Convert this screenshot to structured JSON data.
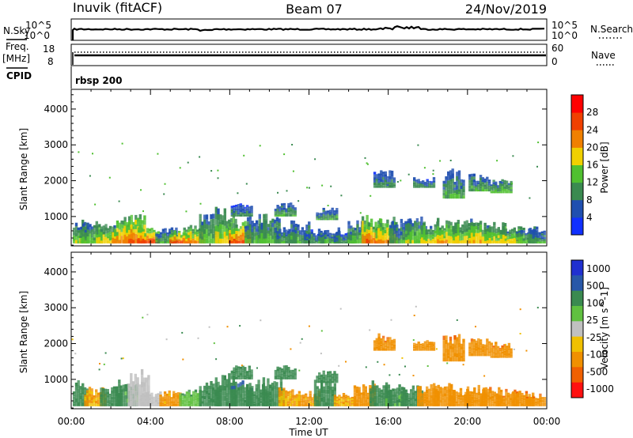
{
  "header": {
    "station": "Inuvik (fitACF)",
    "beam": "Beam 07",
    "date": "24/Nov/2019"
  },
  "summary_panel": {
    "noise_sky_label": "N.Sky",
    "noise_search_label": "N.Search",
    "noise_ticks": [
      "10^5",
      "10^0"
    ],
    "freq_label": "Freq.",
    "freq_unit": "[MHz]",
    "freq_ticks": [
      "18",
      "8"
    ],
    "nave_label": "Nave",
    "nave_ticks": [
      "60",
      "0"
    ],
    "cpid_label": "CPID",
    "cpid_value": "rbsp 200"
  },
  "colors": {
    "power": [
      "#1030ff",
      "#1f4fb0",
      "#3a8a50",
      "#50c030",
      "#f0d000",
      "#f08000",
      "#f04000",
      "#ff0000"
    ],
    "velocity": [
      "#2030d0",
      "#2858a8",
      "#3a8a50",
      "#60c040",
      "#c0c0c0",
      "#f0c000",
      "#f09000",
      "#f06000",
      "#ff1010"
    ]
  },
  "chart_data": [
    {
      "type": "heatmap",
      "title": "",
      "xlabel": "Time UT",
      "ylabel": "Slant Range [km]",
      "x_ticks": [
        "00:00",
        "04:00",
        "08:00",
        "12:00",
        "16:00",
        "20:00",
        "00:00"
      ],
      "y_ticks": [
        "1000",
        "2000",
        "3000",
        "4000"
      ],
      "ylim": [
        180,
        4550
      ],
      "colorbar_label": "Power [dB]",
      "colorbar_ticks": [
        "4",
        "8",
        "12",
        "16",
        "20",
        "24",
        "28"
      ],
      "clim": [
        0,
        30
      ],
      "blobs": [
        {
          "t": 0.3,
          "r0": 250,
          "r1": 1050,
          "p": 16
        },
        {
          "t": 1.0,
          "r0": 250,
          "r1": 900,
          "p": 14
        },
        {
          "t": 1.8,
          "r0": 250,
          "r1": 800,
          "p": 18
        },
        {
          "t": 2.6,
          "r0": 250,
          "r1": 950,
          "p": 22
        },
        {
          "t": 3.2,
          "r0": 250,
          "r1": 1100,
          "p": 24
        },
        {
          "t": 3.9,
          "r0": 250,
          "r1": 750,
          "p": 26
        },
        {
          "t": 4.8,
          "r0": 250,
          "r1": 700,
          "p": 12
        },
        {
          "t": 5.5,
          "r0": 250,
          "r1": 650,
          "p": 26
        },
        {
          "t": 6.2,
          "r0": 250,
          "r1": 800,
          "p": 22
        },
        {
          "t": 7.0,
          "r0": 250,
          "r1": 1100,
          "p": 14
        },
        {
          "t": 7.8,
          "r0": 250,
          "r1": 1300,
          "p": 18
        },
        {
          "t": 8.5,
          "r0": 250,
          "r1": 900,
          "p": 26
        },
        {
          "t": 9.3,
          "r0": 250,
          "r1": 1050,
          "p": 12
        },
        {
          "t": 10.0,
          "r0": 250,
          "r1": 1150,
          "p": 14
        },
        {
          "t": 10.8,
          "r0": 250,
          "r1": 700,
          "p": 12
        },
        {
          "t": 11.5,
          "r0": 250,
          "r1": 900,
          "p": 12
        },
        {
          "t": 12.3,
          "r0": 250,
          "r1": 650,
          "p": 10
        },
        {
          "t": 13.0,
          "r0": 250,
          "r1": 700,
          "p": 12
        },
        {
          "t": 13.8,
          "r0": 250,
          "r1": 600,
          "p": 10
        },
        {
          "t": 14.5,
          "r0": 250,
          "r1": 900,
          "p": 14
        },
        {
          "t": 15.2,
          "r0": 250,
          "r1": 1050,
          "p": 24
        },
        {
          "t": 15.9,
          "r0": 250,
          "r1": 1000,
          "p": 22
        },
        {
          "t": 16.6,
          "r0": 250,
          "r1": 950,
          "p": 12
        },
        {
          "t": 17.4,
          "r0": 250,
          "r1": 1000,
          "p": 16
        },
        {
          "t": 18.2,
          "r0": 250,
          "r1": 900,
          "p": 18
        },
        {
          "t": 19.0,
          "r0": 250,
          "r1": 1000,
          "p": 20
        },
        {
          "t": 19.8,
          "r0": 250,
          "r1": 1050,
          "p": 18
        },
        {
          "t": 20.6,
          "r0": 250,
          "r1": 900,
          "p": 20
        },
        {
          "t": 21.4,
          "r0": 250,
          "r1": 850,
          "p": 18
        },
        {
          "t": 22.2,
          "r0": 250,
          "r1": 800,
          "p": 18
        },
        {
          "t": 23.0,
          "r0": 250,
          "r1": 750,
          "p": 14
        },
        {
          "t": 23.6,
          "r0": 250,
          "r1": 700,
          "p": 12
        },
        {
          "t": 15.8,
          "r0": 1800,
          "r1": 2300,
          "p": 10
        },
        {
          "t": 17.8,
          "r0": 1800,
          "r1": 2100,
          "p": 10
        },
        {
          "t": 19.3,
          "r0": 1500,
          "r1": 2350,
          "p": 12
        },
        {
          "t": 20.6,
          "r0": 1700,
          "r1": 2200,
          "p": 12
        },
        {
          "t": 21.7,
          "r0": 1650,
          "r1": 2050,
          "p": 14
        },
        {
          "t": 8.6,
          "r0": 1000,
          "r1": 1400,
          "p": 10
        },
        {
          "t": 10.8,
          "r0": 1000,
          "r1": 1400,
          "p": 12
        },
        {
          "t": 12.9,
          "r0": 900,
          "r1": 1250,
          "p": 12
        }
      ]
    },
    {
      "type": "heatmap",
      "title": "",
      "xlabel": "Time UT",
      "ylabel": "Slant Range [km]",
      "x_ticks": [
        "00:00",
        "04:00",
        "08:00",
        "12:00",
        "16:00",
        "20:00",
        "00:00"
      ],
      "y_ticks": [
        "1000",
        "2000",
        "3000",
        "4000"
      ],
      "ylim": [
        180,
        4550
      ],
      "colorbar_label": "Velocity [m s^-1]",
      "colorbar_ticks": [
        "1000",
        "500",
        "100",
        "25",
        "-25",
        "-100",
        "-500",
        "-1000"
      ],
      "clim": [
        -1200,
        1200
      ],
      "blobs": [
        {
          "t": 0.3,
          "r0": 250,
          "r1": 1000,
          "v": 150
        },
        {
          "t": 1.2,
          "r0": 250,
          "r1": 800,
          "v": -60
        },
        {
          "t": 2.0,
          "r0": 250,
          "r1": 850,
          "v": 120
        },
        {
          "t": 2.8,
          "r0": 250,
          "r1": 1000,
          "v": 80
        },
        {
          "t": 3.4,
          "r0": 250,
          "r1": 1300,
          "v": 0
        },
        {
          "t": 4.0,
          "r0": 250,
          "r1": 700,
          "v": 10
        },
        {
          "t": 5.0,
          "r0": 250,
          "r1": 700,
          "v": -80
        },
        {
          "t": 6.0,
          "r0": 250,
          "r1": 750,
          "v": 40
        },
        {
          "t": 7.0,
          "r0": 250,
          "r1": 1000,
          "v": 150
        },
        {
          "t": 7.8,
          "r0": 250,
          "r1": 1300,
          "v": 130
        },
        {
          "t": 8.6,
          "r0": 250,
          "r1": 1000,
          "v": 200
        },
        {
          "t": 9.4,
          "r0": 250,
          "r1": 1000,
          "v": 90
        },
        {
          "t": 10.2,
          "r0": 250,
          "r1": 1100,
          "v": 120
        },
        {
          "t": 11.0,
          "r0": 250,
          "r1": 800,
          "v": -60
        },
        {
          "t": 12.0,
          "r0": 250,
          "r1": 700,
          "v": -80
        },
        {
          "t": 12.8,
          "r0": 250,
          "r1": 1000,
          "v": 130
        },
        {
          "t": 13.8,
          "r0": 250,
          "r1": 650,
          "v": -60
        },
        {
          "t": 14.8,
          "r0": 250,
          "r1": 900,
          "v": -90
        },
        {
          "t": 15.6,
          "r0": 250,
          "r1": 1000,
          "v": 100
        },
        {
          "t": 16.4,
          "r0": 250,
          "r1": 950,
          "v": 80
        },
        {
          "t": 17.2,
          "r0": 250,
          "r1": 850,
          "v": 130
        },
        {
          "t": 18.0,
          "r0": 250,
          "r1": 900,
          "v": -120
        },
        {
          "t": 18.8,
          "r0": 250,
          "r1": 950,
          "v": -130
        },
        {
          "t": 19.6,
          "r0": 250,
          "r1": 800,
          "v": -150
        },
        {
          "t": 20.4,
          "r0": 250,
          "r1": 850,
          "v": -150
        },
        {
          "t": 21.2,
          "r0": 250,
          "r1": 800,
          "v": -200
        },
        {
          "t": 22.0,
          "r0": 250,
          "r1": 750,
          "v": -180
        },
        {
          "t": 22.8,
          "r0": 250,
          "r1": 700,
          "v": -160
        },
        {
          "t": 23.5,
          "r0": 250,
          "r1": 650,
          "v": -180
        },
        {
          "t": 15.8,
          "r0": 1800,
          "r1": 2300,
          "v": -180
        },
        {
          "t": 17.8,
          "r0": 1800,
          "r1": 2100,
          "v": -150
        },
        {
          "t": 19.3,
          "r0": 1500,
          "r1": 2300,
          "v": -200
        },
        {
          "t": 20.6,
          "r0": 1650,
          "r1": 2200,
          "v": -180
        },
        {
          "t": 21.7,
          "r0": 1600,
          "r1": 2050,
          "v": -200
        },
        {
          "t": 8.6,
          "r0": 1000,
          "r1": 1400,
          "v": 150
        },
        {
          "t": 10.8,
          "r0": 1000,
          "r1": 1400,
          "v": 120
        },
        {
          "t": 12.9,
          "r0": 900,
          "r1": 1250,
          "v": 130
        }
      ]
    }
  ]
}
